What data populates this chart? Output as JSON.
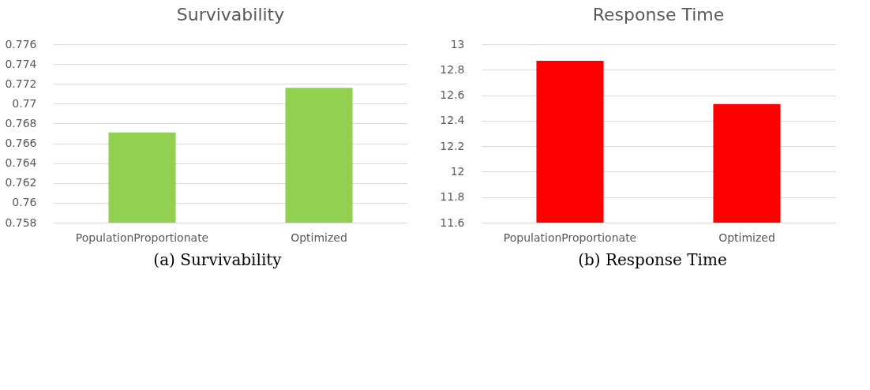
{
  "chart_data": [
    {
      "type": "bar",
      "title": "Survivability",
      "categories": [
        "PopulationProportionate",
        "Optimized"
      ],
      "values": [
        0.7671,
        0.7716
      ],
      "color": "#92d050",
      "ylim": [
        0.758,
        0.776
      ],
      "yticks": [
        0.758,
        0.76,
        0.762,
        0.764,
        0.766,
        0.768,
        0.77,
        0.772,
        0.774,
        0.776
      ],
      "grid": "y",
      "annotations": [
        "(a) Survivability"
      ]
    },
    {
      "type": "bar",
      "title": "Response Time",
      "categories": [
        "PopulationProportionate",
        "Optimized"
      ],
      "values": [
        12.87,
        12.53
      ],
      "color": "#ff0000",
      "ylim": [
        11.6,
        13
      ],
      "yticks": [
        11.6,
        11.8,
        12,
        12.2,
        12.4,
        12.6,
        12.8,
        13
      ],
      "grid": "y",
      "annotations": [
        "(b) Response Time"
      ]
    }
  ]
}
